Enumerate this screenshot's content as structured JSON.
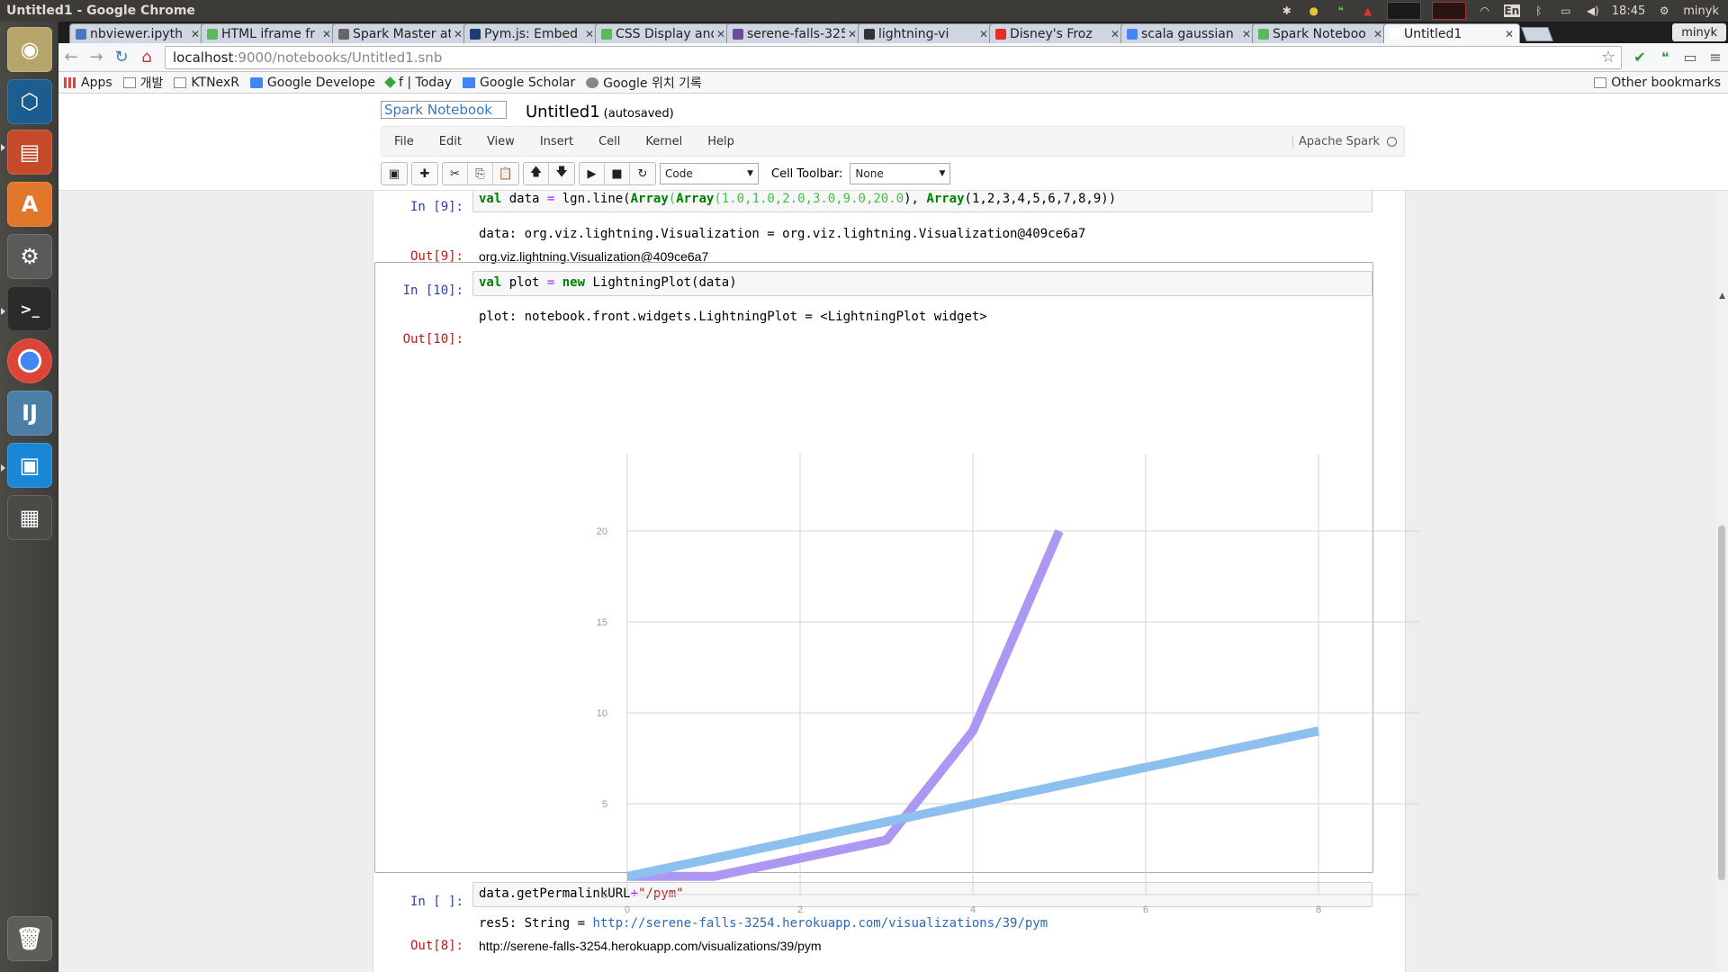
{
  "window_title": "Untitled1 - Google Chrome",
  "topbar": {
    "time": "18:45",
    "user": "minyk",
    "lang": "En"
  },
  "tabs": [
    {
      "title": "nbviewer.ipyth",
      "color": "#4a78c2"
    },
    {
      "title": "HTML iframe fr",
      "color": "#5cb85c"
    },
    {
      "title": "Spark Master at",
      "color": "#666666"
    },
    {
      "title": "Pym.js: Embed",
      "color": "#1c3d73"
    },
    {
      "title": "CSS Display and",
      "color": "#5cb85c"
    },
    {
      "title": "serene-falls-325",
      "color": "#6b4c9a"
    },
    {
      "title": "lightning-vi",
      "color": "#333333"
    },
    {
      "title": "Disney's Froz",
      "color": "#e52d27"
    },
    {
      "title": "scala gaussian",
      "color": "#4285f4"
    },
    {
      "title": "Spark Noteboo",
      "color": "#5cb85c"
    },
    {
      "title": "Untitled1",
      "color": "#ffffff",
      "active": true
    }
  ],
  "profile": "minyk",
  "url": {
    "host": "localhost",
    "path": ":9000/notebooks/Untitled1.snb"
  },
  "bookmarks": [
    {
      "label": "Apps",
      "icon": "apps-grid-icon"
    },
    {
      "label": "개발",
      "icon": "folder-icon"
    },
    {
      "label": "KTNexR",
      "icon": "folder-icon"
    },
    {
      "label": "Google Develope",
      "icon": "google-dev-icon"
    },
    {
      "label": "f | Today",
      "icon": "today-icon"
    },
    {
      "label": "Google Scholar",
      "icon": "scholar-icon"
    },
    {
      "label": "Google 위치 기록",
      "icon": "location-history-icon"
    }
  ],
  "other_bookmarks": "Other bookmarks",
  "notebook": {
    "logo_alt": "Spark Notebook",
    "title": "Untitled1",
    "autosaved": "(autosaved)",
    "menus": [
      "File",
      "Edit",
      "View",
      "Insert",
      "Cell",
      "Kernel",
      "Help"
    ],
    "kernel": "Apache Spark",
    "cell_type": "Code",
    "cell_toolbar_label": "Cell Toolbar:",
    "cell_toolbar_value": "None"
  },
  "cells": {
    "c9": {
      "in_prompt": "In [9]:",
      "code_parts": [
        "val",
        " data ",
        "=",
        " lgn.line(",
        "Array",
        "(",
        "Array",
        "(",
        "1.0,1.0,2.0,3.0,9.0,20.0",
        "), ",
        "Array",
        "(",
        "1,2,3,4,5,6,7,8,9",
        "))"
      ],
      "stdout": "data: org.viz.lightning.Visualization = org.viz.lightning.Visualization@409ce6a7",
      "out_prompt": "Out[9]:",
      "out_value": "org.viz.lightning.Visualization@409ce6a7"
    },
    "c10": {
      "in_prompt": "In [10]:",
      "code_parts": [
        "val",
        " plot ",
        "=",
        " ",
        "new",
        " LightningPlot(data)"
      ],
      "stdout": "plot: notebook.front.widgets.LightningPlot = <LightningPlot widget>",
      "out_prompt": "Out[10]:"
    },
    "c_last": {
      "in_prompt": "In [ ]:",
      "code_parts": [
        "data.getPermalinkURL",
        "+",
        "\"/pym\""
      ],
      "stdout_prefix": "res5: String = ",
      "stdout_link": "http://serene-falls-3254.herokuapp.com/visualizations/39/pym",
      "out_prompt": "Out[8]:",
      "out_value": "http://serene-falls-3254.herokuapp.com/visualizations/39/pym"
    }
  },
  "chart_data": {
    "type": "line",
    "title": "",
    "xlabel": "",
    "ylabel": "",
    "xlim": [
      0,
      9.2
    ],
    "ylim": [
      0,
      20
    ],
    "x_ticks": [
      0,
      2,
      4,
      6,
      8
    ],
    "y_ticks": [
      0,
      5,
      10,
      15,
      20
    ],
    "grid": true,
    "series": [
      {
        "values": [
          1.0,
          1.0,
          2.0,
          3.0,
          9.0,
          20.0
        ],
        "x": [
          0,
          1,
          2,
          3,
          4,
          5
        ],
        "color": "#ac98f2"
      },
      {
        "values": [
          1,
          2,
          3,
          4,
          5,
          6,
          7,
          8,
          9
        ],
        "x": [
          0,
          1,
          2,
          3,
          4,
          5,
          6,
          7,
          8
        ],
        "color": "#8ec0ef"
      }
    ]
  }
}
